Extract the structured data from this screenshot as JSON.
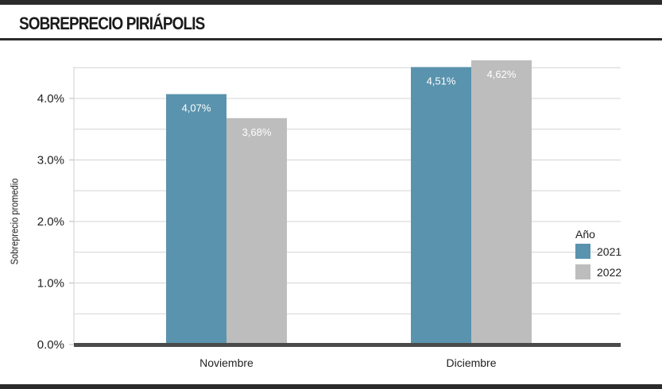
{
  "header": {
    "title": "SOBREPRECIO PIRIÁPOLIS"
  },
  "chart_data": {
    "type": "bar",
    "title": "SOBREPRECIO PIRIÁPOLIS",
    "xlabel": "",
    "ylabel": "Sobreprecio promedio",
    "categories": [
      "Noviembre",
      "Diciembre"
    ],
    "series": [
      {
        "name": "2021",
        "values": [
          4.07,
          4.51
        ],
        "labels": [
          "4,07%",
          "4,51%"
        ],
        "color": "#5a93ad"
      },
      {
        "name": "2022",
        "values": [
          3.68,
          4.62
        ],
        "labels": [
          "3,68%",
          "4,62%"
        ],
        "color": "#bdbdbd"
      }
    ],
    "ylim": [
      0,
      4.6
    ],
    "yticks": [
      0,
      1,
      2,
      3,
      4
    ],
    "ytick_labels": [
      "0.0%",
      "1.0%",
      "2.0%",
      "3.0%",
      "4.0%"
    ],
    "legend": {
      "title": "Año",
      "placement": "right"
    },
    "grid": true
  }
}
